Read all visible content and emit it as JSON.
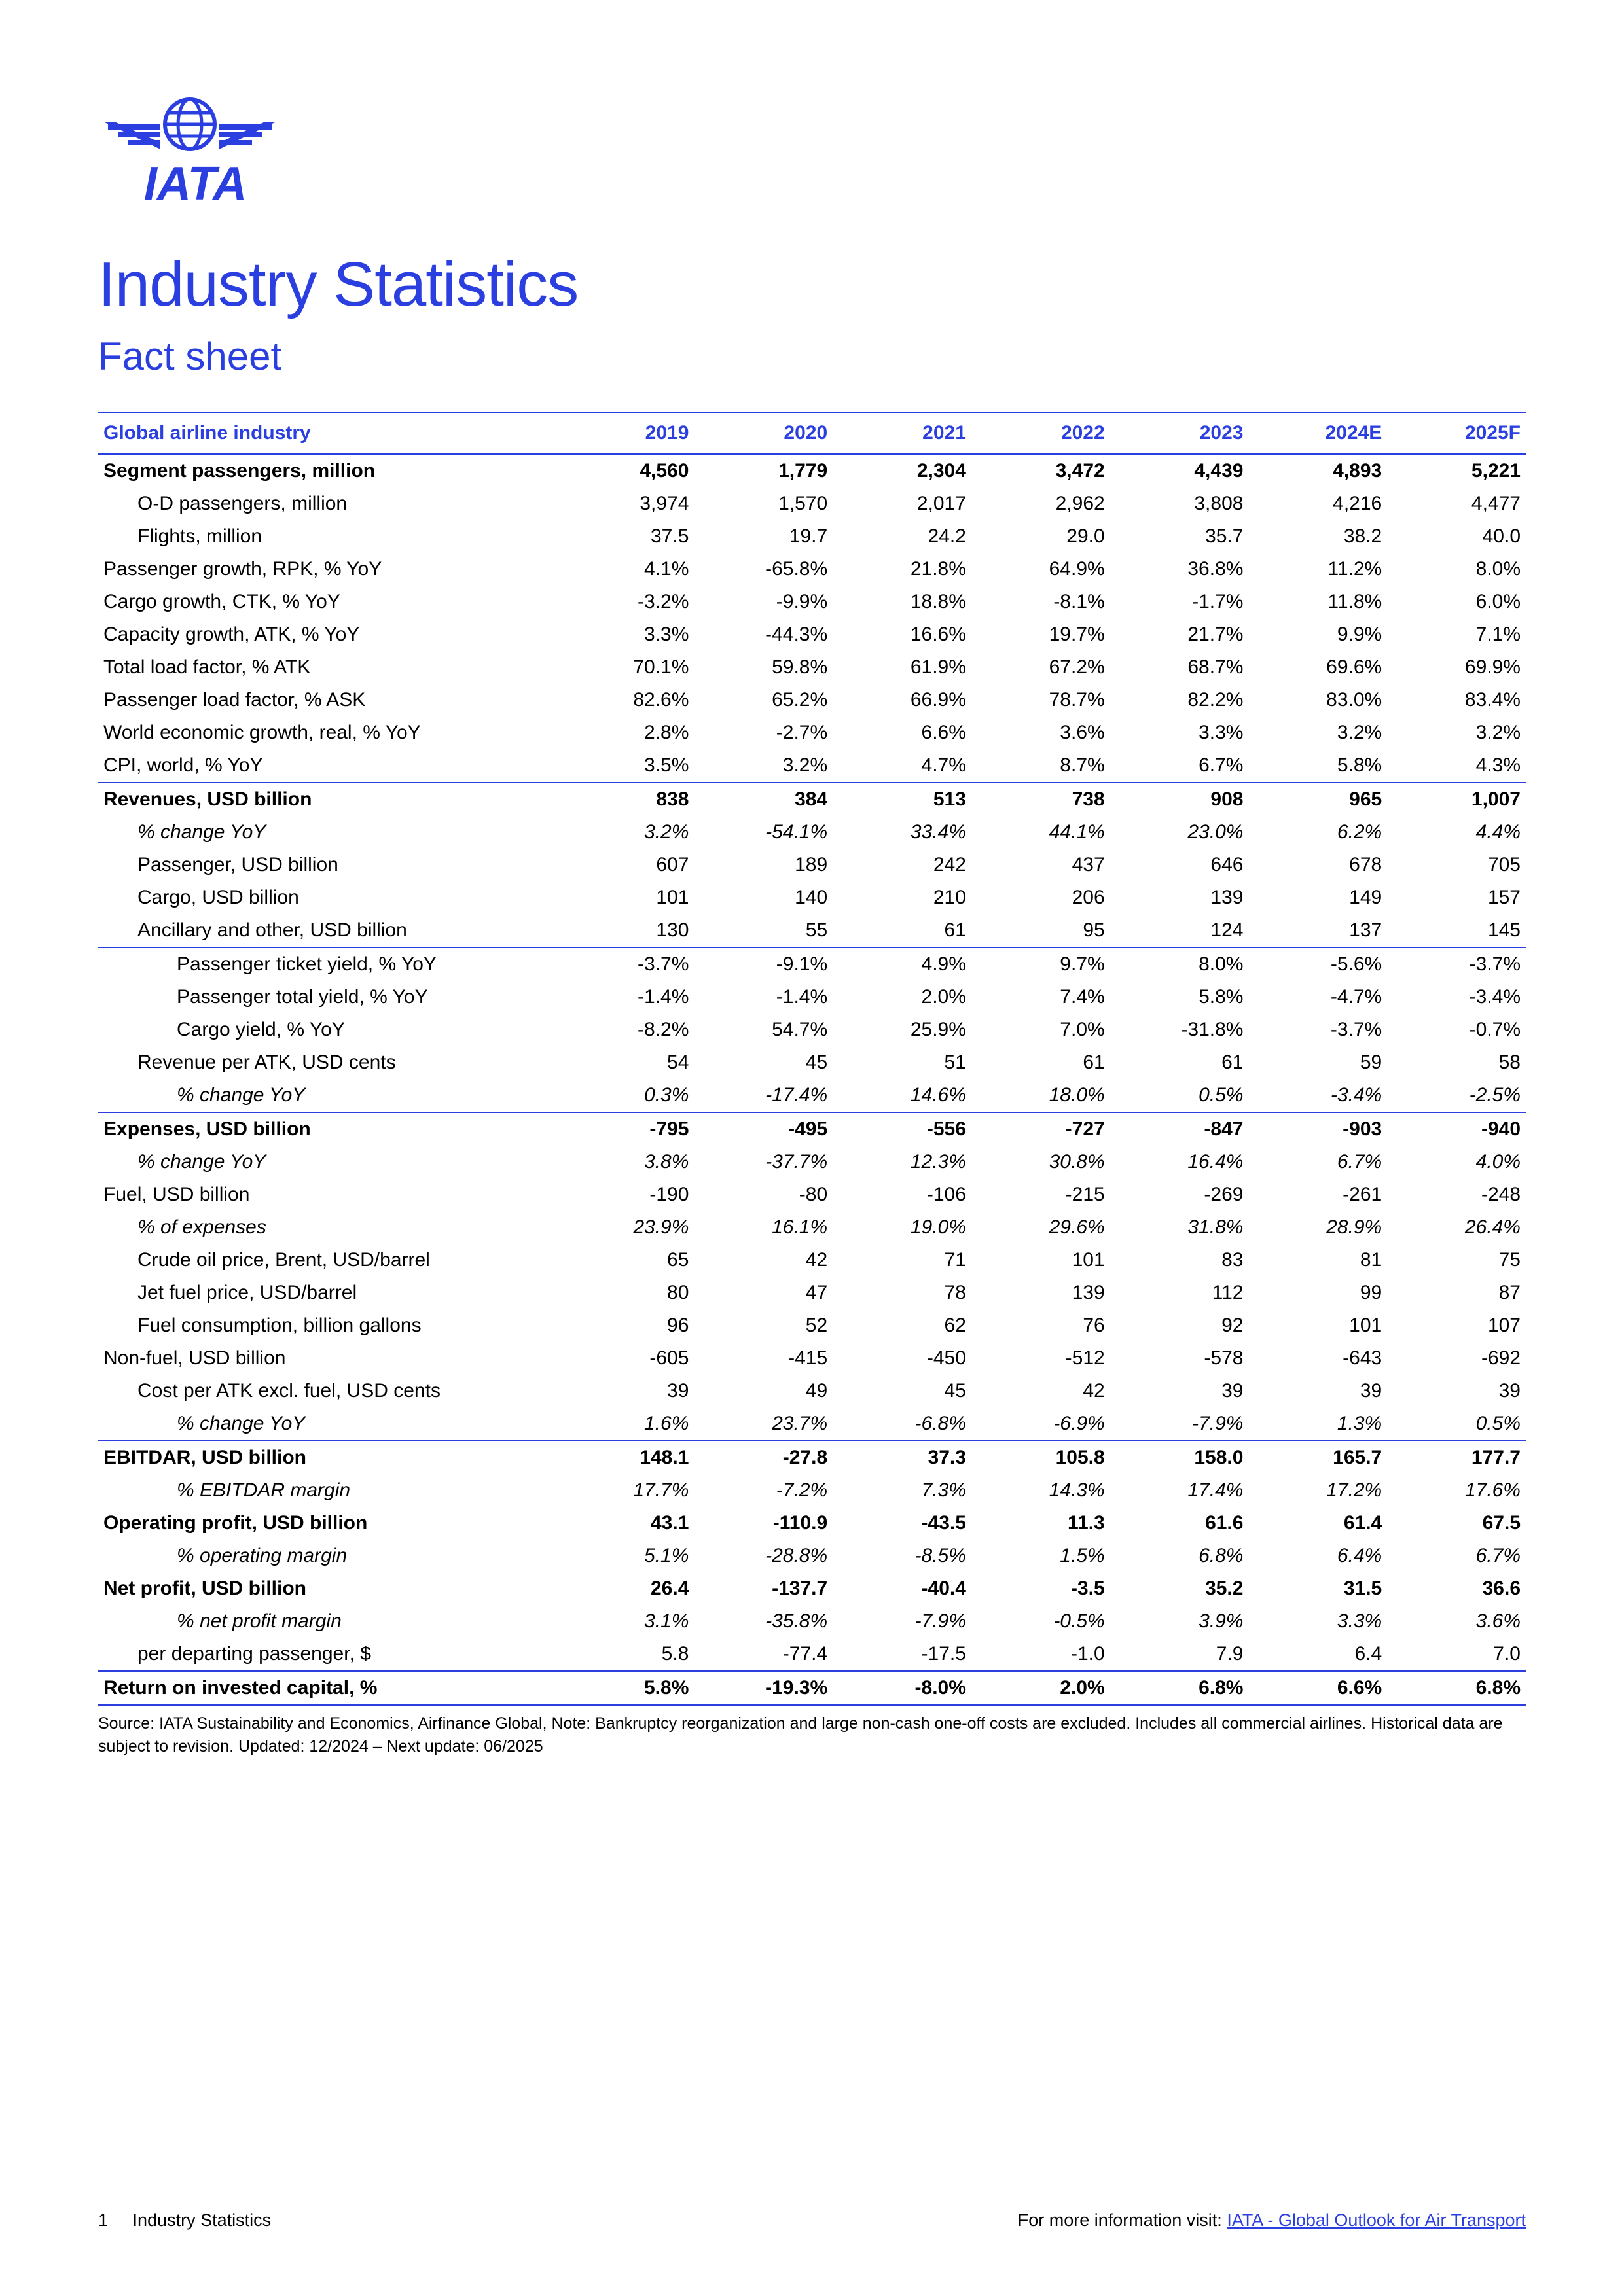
{
  "colors": {
    "accent": "#2b3fe0",
    "text": "#000000",
    "background": "#ffffff"
  },
  "header": {
    "title": "Industry Statistics",
    "subtitle": "Fact sheet",
    "logo_text": "IATA"
  },
  "table": {
    "title_fontsize": 96,
    "subtitle_fontsize": 60,
    "cell_fontsize": 30,
    "headers": [
      "Global airline industry",
      "2019",
      "2020",
      "2021",
      "2022",
      "2023",
      "2024E",
      "2025F"
    ],
    "rows": [
      {
        "label": "Segment passengers, million",
        "vals": [
          "4,560",
          "1,779",
          "2,304",
          "3,472",
          "4,439",
          "4,893",
          "5,221"
        ],
        "bold": true
      },
      {
        "label": "O-D passengers, million",
        "vals": [
          "3,974",
          "1,570",
          "2,017",
          "2,962",
          "3,808",
          "4,216",
          "4,477"
        ],
        "indent": 1
      },
      {
        "label": "Flights, million",
        "vals": [
          "37.5",
          "19.7",
          "24.2",
          "29.0",
          "35.7",
          "38.2",
          "40.0"
        ],
        "indent": 1
      },
      {
        "label": "Passenger growth, RPK, % YoY",
        "vals": [
          "4.1%",
          "-65.8%",
          "21.8%",
          "64.9%",
          "36.8%",
          "11.2%",
          "8.0%"
        ]
      },
      {
        "label": "Cargo growth, CTK, % YoY",
        "vals": [
          "-3.2%",
          "-9.9%",
          "18.8%",
          "-8.1%",
          "-1.7%",
          "11.8%",
          "6.0%"
        ]
      },
      {
        "label": "Capacity growth, ATK, % YoY",
        "vals": [
          "3.3%",
          "-44.3%",
          "16.6%",
          "19.7%",
          "21.7%",
          "9.9%",
          "7.1%"
        ]
      },
      {
        "label": "Total load factor, % ATK",
        "vals": [
          "70.1%",
          "59.8%",
          "61.9%",
          "67.2%",
          "68.7%",
          "69.6%",
          "69.9%"
        ]
      },
      {
        "label": "Passenger load factor, % ASK",
        "vals": [
          "82.6%",
          "65.2%",
          "66.9%",
          "78.7%",
          "82.2%",
          "83.0%",
          "83.4%"
        ]
      },
      {
        "label": "World economic growth, real, % YoY",
        "vals": [
          "2.8%",
          "-2.7%",
          "6.6%",
          "3.6%",
          "3.3%",
          "3.2%",
          "3.2%"
        ]
      },
      {
        "label": "CPI, world, % YoY",
        "vals": [
          "3.5%",
          "3.2%",
          "4.7%",
          "8.7%",
          "6.7%",
          "5.8%",
          "4.3%"
        ],
        "border_bottom": true
      },
      {
        "label": "Revenues, USD billion",
        "vals": [
          "838",
          "384",
          "513",
          "738",
          "908",
          "965",
          "1,007"
        ],
        "bold": true
      },
      {
        "label": "% change YoY",
        "vals": [
          "3.2%",
          "-54.1%",
          "33.4%",
          "44.1%",
          "23.0%",
          "6.2%",
          "4.4%"
        ],
        "italic": true,
        "indent": 1
      },
      {
        "label": "Passenger, USD billion",
        "vals": [
          "607",
          "189",
          "242",
          "437",
          "646",
          "678",
          "705"
        ],
        "indent": 1
      },
      {
        "label": "Cargo, USD billion",
        "vals": [
          "101",
          "140",
          "210",
          "206",
          "139",
          "149",
          "157"
        ],
        "indent": 1
      },
      {
        "label": "Ancillary and other, USD billion",
        "vals": [
          "130",
          "55",
          "61",
          "95",
          "124",
          "137",
          "145"
        ],
        "indent": 1,
        "border_bottom": true
      },
      {
        "label": "Passenger ticket yield, % YoY",
        "vals": [
          "-3.7%",
          "-9.1%",
          "4.9%",
          "9.7%",
          "8.0%",
          "-5.6%",
          "-3.7%"
        ],
        "indent": 2
      },
      {
        "label": "Passenger total yield, % YoY",
        "vals": [
          "-1.4%",
          "-1.4%",
          "2.0%",
          "7.4%",
          "5.8%",
          "-4.7%",
          "-3.4%"
        ],
        "indent": 2
      },
      {
        "label": "Cargo yield, % YoY",
        "vals": [
          "-8.2%",
          "54.7%",
          "25.9%",
          "7.0%",
          "-31.8%",
          "-3.7%",
          "-0.7%"
        ],
        "indent": 2
      },
      {
        "label": "Revenue per ATK, USD cents",
        "vals": [
          "54",
          "45",
          "51",
          "61",
          "61",
          "59",
          "58"
        ],
        "indent": 1
      },
      {
        "label": "% change YoY",
        "vals": [
          "0.3%",
          "-17.4%",
          "14.6%",
          "18.0%",
          "0.5%",
          "-3.4%",
          "-2.5%"
        ],
        "italic": true,
        "indent": 2,
        "border_bottom": true
      },
      {
        "label": "Expenses, USD billion",
        "vals": [
          "-795",
          "-495",
          "-556",
          "-727",
          "-847",
          "-903",
          "-940"
        ],
        "bold": true
      },
      {
        "label": "% change YoY",
        "vals": [
          "3.8%",
          "-37.7%",
          "12.3%",
          "30.8%",
          "16.4%",
          "6.7%",
          "4.0%"
        ],
        "italic": true,
        "indent": 1
      },
      {
        "label": "Fuel, USD billion",
        "vals": [
          "-190",
          "-80",
          "-106",
          "-215",
          "-269",
          "-261",
          "-248"
        ]
      },
      {
        "label": "% of expenses",
        "vals": [
          "23.9%",
          "16.1%",
          "19.0%",
          "29.6%",
          "31.8%",
          "28.9%",
          "26.4%"
        ],
        "italic": true,
        "indent": 1
      },
      {
        "label": "Crude oil price, Brent, USD/barrel",
        "vals": [
          "65",
          "42",
          "71",
          "101",
          "83",
          "81",
          "75"
        ],
        "indent": 1
      },
      {
        "label": "Jet fuel price, USD/barrel",
        "vals": [
          "80",
          "47",
          "78",
          "139",
          "112",
          "99",
          "87"
        ],
        "indent": 1
      },
      {
        "label": "Fuel consumption, billion gallons",
        "vals": [
          "96",
          "52",
          "62",
          "76",
          "92",
          "101",
          "107"
        ],
        "indent": 1
      },
      {
        "label": "Non-fuel, USD billion",
        "vals": [
          "-605",
          "-415",
          "-450",
          "-512",
          "-578",
          "-643",
          "-692"
        ]
      },
      {
        "label": "Cost per ATK excl. fuel, USD cents",
        "vals": [
          "39",
          "49",
          "45",
          "42",
          "39",
          "39",
          "39"
        ],
        "indent": 1
      },
      {
        "label": "% change YoY",
        "vals": [
          "1.6%",
          "23.7%",
          "-6.8%",
          "-6.9%",
          "-7.9%",
          "1.3%",
          "0.5%"
        ],
        "italic": true,
        "indent": 2,
        "border_bottom": true
      },
      {
        "label": "EBITDAR, USD billion",
        "vals": [
          "148.1",
          "-27.8",
          "37.3",
          "105.8",
          "158.0",
          "165.7",
          "177.7"
        ],
        "bold": true
      },
      {
        "label": "% EBITDAR margin",
        "vals": [
          "17.7%",
          "-7.2%",
          "7.3%",
          "14.3%",
          "17.4%",
          "17.2%",
          "17.6%"
        ],
        "italic": true,
        "indent": 2
      },
      {
        "label": "Operating profit, USD billion",
        "vals": [
          "43.1",
          "-110.9",
          "-43.5",
          "11.3",
          "61.6",
          "61.4",
          "67.5"
        ],
        "bold": true
      },
      {
        "label": "% operating margin",
        "vals": [
          "5.1%",
          "-28.8%",
          "-8.5%",
          "1.5%",
          "6.8%",
          "6.4%",
          "6.7%"
        ],
        "italic": true,
        "indent": 2
      },
      {
        "label": "Net profit, USD billion",
        "vals": [
          "26.4",
          "-137.7",
          "-40.4",
          "-3.5",
          "35.2",
          "31.5",
          "36.6"
        ],
        "bold": true
      },
      {
        "label": "% net profit margin",
        "vals": [
          "3.1%",
          "-35.8%",
          "-7.9%",
          "-0.5%",
          "3.9%",
          "3.3%",
          "3.6%"
        ],
        "italic": true,
        "indent": 2
      },
      {
        "label": "per departing passenger, $",
        "vals": [
          "5.8",
          "-77.4",
          "-17.5",
          "-1.0",
          "7.9",
          "6.4",
          "7.0"
        ],
        "indent": 1,
        "border_bottom": true
      },
      {
        "label": "Return on invested capital, %",
        "vals": [
          "5.8%",
          "-19.3%",
          "-8.0%",
          "2.0%",
          "6.8%",
          "6.6%",
          "6.8%"
        ],
        "bold": true
      }
    ]
  },
  "source": "Source: IATA Sustainability and Economics, Airfinance Global, Note: Bankruptcy reorganization and large non-cash one-off costs are excluded. Includes all commercial airlines. Historical data are subject to revision. Updated: 12/2024 – Next update: 06/2025",
  "footer": {
    "page_label": "1",
    "doc_title": "Industry Statistics",
    "info_prefix": "For more information visit: ",
    "link_text": "IATA - Global Outlook for Air Transport"
  }
}
